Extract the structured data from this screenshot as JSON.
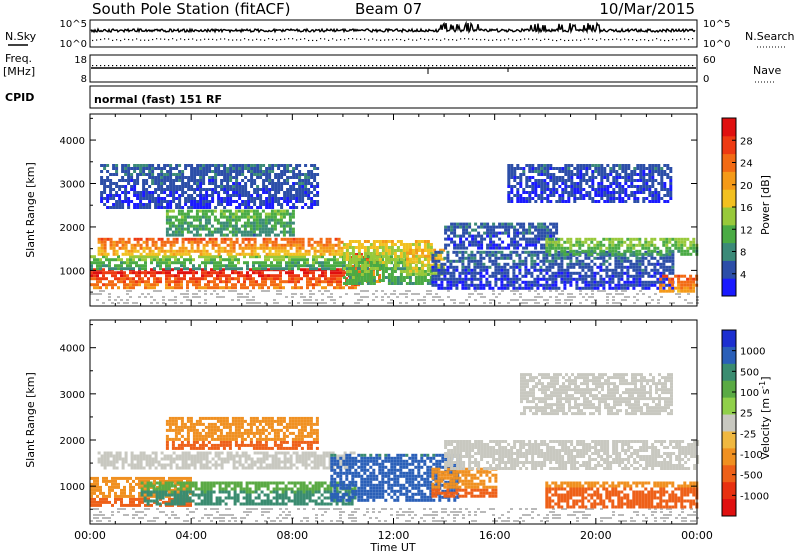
{
  "header": {
    "station": "South Pole Station (fitACF)",
    "beam": "Beam 07",
    "date": "10/Mar/2015"
  },
  "strips": {
    "nsky_label": "N.Sky",
    "nsearch_label": "N.Search",
    "noise_ticks": [
      "10^5",
      "10^0"
    ],
    "freq_label": "Freq.",
    "freq_unit": "[MHz]",
    "freq_ticks": [
      "18",
      "8"
    ],
    "nave_label": "Nave",
    "nave_ticks": [
      "60",
      "0"
    ],
    "cpid_label": "CPID",
    "cpid_value": "normal (fast) 151 RF"
  },
  "colors": {
    "power": [
      "#1a1aff",
      "#2c4ea8",
      "#3b8a78",
      "#4aab44",
      "#98c93a",
      "#f2c020",
      "#f59a18",
      "#f36b14",
      "#ee3a12",
      "#e01010"
    ],
    "velocity": [
      "#1c2fd0",
      "#2a5fb8",
      "#3a8c70",
      "#5aaa44",
      "#90d04a",
      "#c8c8c0",
      "#f0b840",
      "#f09020",
      "#ee6018",
      "#e83010",
      "#e01010"
    ],
    "ground": "#8a8a8a"
  },
  "chart_data": [
    {
      "type": "heatmap",
      "name": "power",
      "xlabel": "Time UT",
      "ylabel": "Slant Range [km]",
      "x_ticks": [
        "00:00",
        "04:00",
        "08:00",
        "12:00",
        "16:00",
        "20:00",
        "00:00"
      ],
      "xlim": [
        0,
        24
      ],
      "ylim": [
        180,
        4600
      ],
      "y_ticks": [
        1000,
        2000,
        3000,
        4000
      ],
      "colorbar": {
        "label": "Power [dB]",
        "ticks": [
          4,
          8,
          12,
          16,
          20,
          24,
          28
        ],
        "range": [
          0,
          32
        ]
      },
      "bands": [
        {
          "t0": 0.0,
          "t1": 10.6,
          "r0": 600,
          "r1": 1050,
          "v0": 30,
          "v1": 22
        },
        {
          "t0": 10.2,
          "t1": 11.5,
          "r0": 750,
          "r1": 1400,
          "v0": 28,
          "v1": 20
        },
        {
          "t0": 0.0,
          "t1": 12.5,
          "r0": 1050,
          "r1": 1350,
          "v0": 14,
          "v1": 8
        },
        {
          "t0": 0.3,
          "t1": 10.0,
          "r0": 1400,
          "r1": 1750,
          "v0": 25,
          "v1": 18
        },
        {
          "t0": 10.0,
          "t1": 13.5,
          "r0": 700,
          "r1": 1700,
          "v0": 18,
          "v1": 10
        },
        {
          "t0": 12.5,
          "t1": 14.0,
          "r0": 900,
          "r1": 1500,
          "v0": 20,
          "v1": 14
        },
        {
          "t0": 3.0,
          "t1": 8.0,
          "r0": 1800,
          "r1": 2400,
          "v0": 12,
          "v1": 8
        },
        {
          "t0": 0.4,
          "t1": 9.0,
          "r0": 2450,
          "r1": 3450,
          "v0": 6,
          "v1": 3
        },
        {
          "t0": 14.0,
          "t1": 18.5,
          "r0": 1500,
          "r1": 2100,
          "v0": 6,
          "v1": 3
        },
        {
          "t0": 13.5,
          "t1": 23.0,
          "r0": 600,
          "r1": 1450,
          "v0": 6,
          "v1": 3
        },
        {
          "t0": 18.0,
          "t1": 24.0,
          "r0": 1400,
          "r1": 1750,
          "v0": 14,
          "v1": 10
        },
        {
          "t0": 22.5,
          "t1": 24.0,
          "r0": 500,
          "r1": 900,
          "v0": 26,
          "v1": 20
        },
        {
          "t0": 16.5,
          "t1": 23.0,
          "r0": 2600,
          "r1": 3450,
          "v0": 5,
          "v1": 3
        }
      ]
    },
    {
      "type": "heatmap",
      "name": "velocity",
      "xlabel": "Time UT",
      "ylabel": "Slant Range [km]",
      "x_ticks": [
        "00:00",
        "04:00",
        "08:00",
        "12:00",
        "16:00",
        "20:00",
        "00:00"
      ],
      "xlim": [
        0,
        24
      ],
      "ylim": [
        180,
        4600
      ],
      "y_ticks": [
        1000,
        2000,
        3000,
        4000
      ],
      "colorbar": {
        "label": "Velocity [m s^-1]",
        "ticks": [
          "1000",
          "500",
          "100",
          "25",
          "-25",
          "-100",
          "-500",
          "-1000"
        ]
      },
      "bands": [
        {
          "t0": 0.3,
          "t1": 10.5,
          "r0": 1400,
          "r1": 1750,
          "v0": 0,
          "v1": 0
        },
        {
          "t0": 0.0,
          "t1": 4.0,
          "r0": 600,
          "r1": 1200,
          "v0": -150,
          "v1": -300
        },
        {
          "t0": 2.0,
          "t1": 10.5,
          "r0": 600,
          "r1": 1100,
          "v0": 120,
          "v1": 200
        },
        {
          "t0": 9.5,
          "t1": 14.5,
          "r0": 700,
          "r1": 1700,
          "v0": 400,
          "v1": 800
        },
        {
          "t0": 13.5,
          "t1": 16.0,
          "r0": 800,
          "r1": 1400,
          "v0": -120,
          "v1": -300
        },
        {
          "t0": 14.0,
          "t1": 24.0,
          "r0": 1400,
          "r1": 2000,
          "v0": 0,
          "v1": 0
        },
        {
          "t0": 18.0,
          "t1": 24.0,
          "r0": 550,
          "r1": 1100,
          "v0": -200,
          "v1": -500
        },
        {
          "t0": 3.0,
          "t1": 9.0,
          "r0": 1800,
          "r1": 2500,
          "v0": -150,
          "v1": -300
        },
        {
          "t0": 17.0,
          "t1": 23.0,
          "r0": 2600,
          "r1": 3450,
          "v0": 0,
          "v1": 0
        }
      ]
    }
  ]
}
